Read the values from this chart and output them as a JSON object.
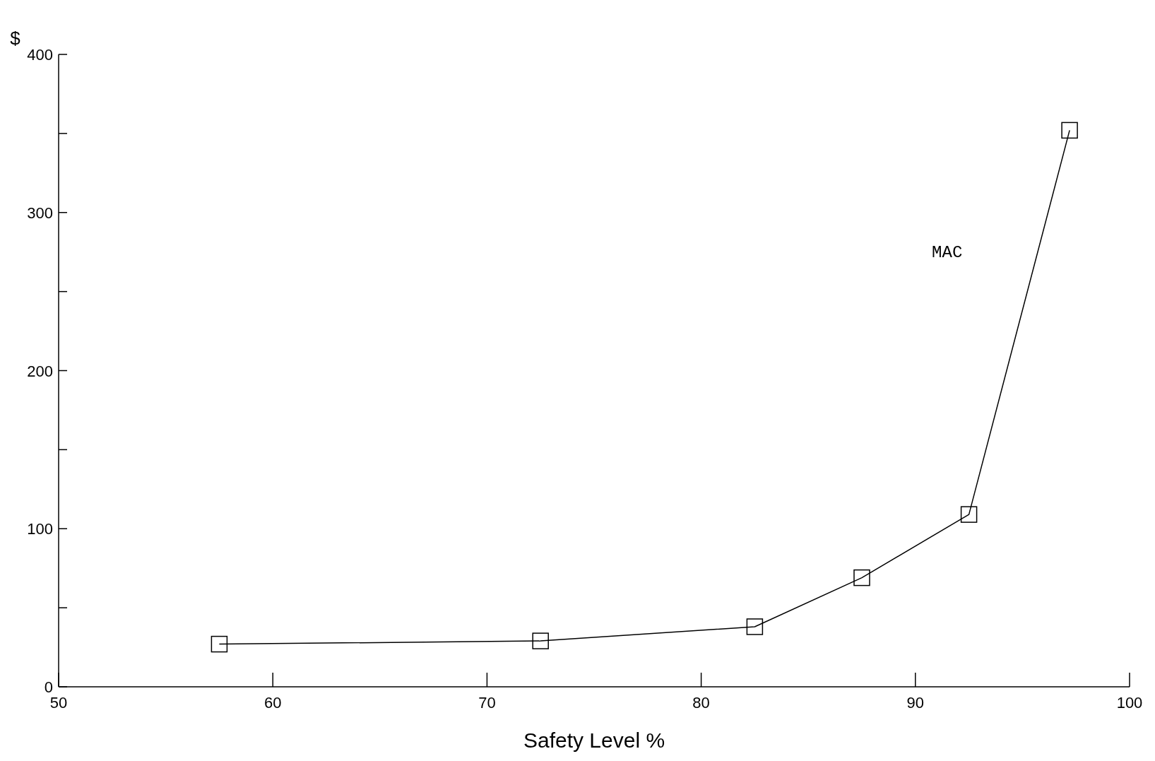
{
  "chart_data": {
    "type": "line",
    "xlabel": "Safety Level %",
    "ylabel": "$",
    "series": [
      {
        "name": "MAC",
        "color": "#000000",
        "x": [
          57.5,
          72.5,
          82.5,
          87.5,
          92.5,
          97.2
        ],
        "values": [
          27,
          29,
          38,
          69,
          109,
          352
        ]
      }
    ],
    "xlim": [
      50,
      100
    ],
    "xticks": [
      50,
      60,
      70,
      80,
      90,
      100
    ],
    "ylim": [
      0,
      400
    ],
    "yticks": [
      0,
      {
        "value": 50,
        "label": null
      },
      100,
      {
        "value": 150,
        "label": null
      },
      200,
      {
        "value": 250,
        "label": null
      },
      300,
      {
        "value": 350,
        "label": null
      },
      400
    ],
    "marker": "square",
    "line_style": "solid",
    "grid": false,
    "legend": false
  }
}
